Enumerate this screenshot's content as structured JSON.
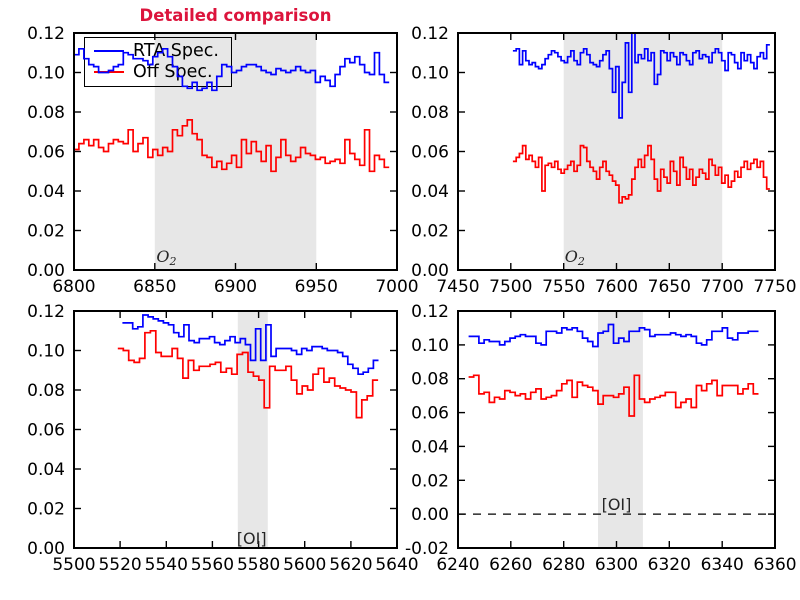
{
  "title": {
    "text": "Detailed comparison",
    "color": "#dc143c"
  },
  "colors": {
    "rta_spec": "#0000ff",
    "off_spec": "#ff0000",
    "band": "#e7e7e7",
    "axis": "#000000",
    "background": "#ffffff"
  },
  "legend": {
    "location": "upper-left-of-top-left-panel",
    "items": [
      {
        "label": "RTA Spec.",
        "color": "#0000ff"
      },
      {
        "label": "Off Spec.",
        "color": "#ff0000"
      }
    ]
  },
  "chart_data": [
    {
      "name": "top-left",
      "type": "line",
      "step": true,
      "grid": false,
      "xlabel": "",
      "ylabel": "",
      "xlim": [
        6800,
        7000
      ],
      "ylim": [
        0,
        0.12
      ],
      "xticks": [
        6800,
        6850,
        6900,
        6950,
        7000
      ],
      "yticks": [
        0.0,
        0.02,
        0.04,
        0.06,
        0.08,
        0.1,
        0.12
      ],
      "band": [
        6850,
        6950
      ],
      "zero_line": true,
      "annotation": {
        "label": "O",
        "sub": "2",
        "italic": true,
        "x": 6851,
        "y": 0.004,
        "anchor": "start"
      },
      "series": [
        {
          "name": "RTA Spec.",
          "color": "#0000ff",
          "x_start": 6800,
          "dx": 3.05,
          "values": [
            0.109,
            0.112,
            0.107,
            0.104,
            0.103,
            0.1,
            0.1,
            0.101,
            0.103,
            0.104,
            0.11,
            0.109,
            0.107,
            0.107,
            0.106,
            0.104,
            0.108,
            0.11,
            0.112,
            0.108,
            0.103,
            0.098,
            0.093,
            0.092,
            0.095,
            0.091,
            0.092,
            0.095,
            0.091,
            0.098,
            0.104,
            0.103,
            0.1,
            0.101,
            0.103,
            0.104,
            0.104,
            0.103,
            0.101,
            0.1,
            0.099,
            0.102,
            0.101,
            0.1,
            0.101,
            0.103,
            0.101,
            0.1,
            0.101,
            0.095,
            0.098,
            0.096,
            0.093,
            0.099,
            0.103,
            0.107,
            0.105,
            0.108,
            0.104,
            0.1,
            0.099,
            0.11,
            0.099,
            0.095
          ]
        },
        {
          "name": "Off Spec.",
          "color": "#ff0000",
          "x_start": 6800,
          "dx": 3.05,
          "values": [
            0.061,
            0.064,
            0.066,
            0.063,
            0.066,
            0.062,
            0.06,
            0.064,
            0.066,
            0.065,
            0.064,
            0.071,
            0.06,
            0.064,
            0.067,
            0.057,
            0.061,
            0.058,
            0.062,
            0.06,
            0.071,
            0.068,
            0.073,
            0.076,
            0.069,
            0.066,
            0.058,
            0.057,
            0.052,
            0.055,
            0.051,
            0.054,
            0.058,
            0.052,
            0.066,
            0.059,
            0.065,
            0.06,
            0.055,
            0.063,
            0.05,
            0.057,
            0.066,
            0.058,
            0.055,
            0.057,
            0.062,
            0.059,
            0.058,
            0.056,
            0.057,
            0.054,
            0.055,
            0.056,
            0.054,
            0.066,
            0.059,
            0.056,
            0.053,
            0.071,
            0.05,
            0.058,
            0.056,
            0.052
          ]
        }
      ]
    },
    {
      "name": "top-right",
      "type": "line",
      "step": true,
      "grid": false,
      "xlabel": "",
      "ylabel": "",
      "xlim": [
        7450,
        7750
      ],
      "ylim": [
        0,
        0.12
      ],
      "xticks": [
        7450,
        7500,
        7550,
        7600,
        7650,
        7700,
        7750
      ],
      "yticks": [
        0.0,
        0.02,
        0.04,
        0.06,
        0.08,
        0.1,
        0.12
      ],
      "band": [
        7550,
        7700
      ],
      "zero_line": true,
      "annotation": {
        "label": "O",
        "sub": "2",
        "italic": true,
        "x": 7551,
        "y": 0.004,
        "anchor": "start"
      },
      "series": [
        {
          "name": "RTA Spec.",
          "color": "#0000ff",
          "x_start": 7502,
          "dx": 3.04,
          "values": [
            0.111,
            0.112,
            0.104,
            0.111,
            0.106,
            0.104,
            0.105,
            0.103,
            0.102,
            0.104,
            0.107,
            0.109,
            0.111,
            0.11,
            0.108,
            0.106,
            0.105,
            0.108,
            0.111,
            0.106,
            0.104,
            0.11,
            0.112,
            0.109,
            0.105,
            0.104,
            0.103,
            0.106,
            0.109,
            0.111,
            0.102,
            0.09,
            0.103,
            0.077,
            0.095,
            0.115,
            0.09,
            0.121,
            0.105,
            0.109,
            0.107,
            0.112,
            0.106,
            0.11,
            0.094,
            0.099,
            0.111,
            0.11,
            0.106,
            0.11,
            0.108,
            0.104,
            0.11,
            0.109,
            0.106,
            0.104,
            0.11,
            0.111,
            0.107,
            0.109,
            0.108,
            0.105,
            0.11,
            0.112,
            0.11,
            0.106,
            0.101,
            0.11,
            0.109,
            0.105,
            0.102,
            0.11,
            0.106,
            0.109,
            0.105,
            0.102,
            0.108,
            0.11,
            0.107,
            0.114
          ]
        },
        {
          "name": "Off Spec.",
          "color": "#ff0000",
          "x_start": 7502,
          "dx": 3.04,
          "values": [
            0.055,
            0.057,
            0.059,
            0.063,
            0.056,
            0.058,
            0.055,
            0.052,
            0.057,
            0.04,
            0.053,
            0.054,
            0.052,
            0.055,
            0.051,
            0.049,
            0.051,
            0.053,
            0.055,
            0.05,
            0.053,
            0.063,
            0.062,
            0.055,
            0.052,
            0.05,
            0.046,
            0.052,
            0.055,
            0.05,
            0.048,
            0.045,
            0.043,
            0.034,
            0.037,
            0.036,
            0.038,
            0.046,
            0.052,
            0.056,
            0.052,
            0.058,
            0.063,
            0.056,
            0.046,
            0.04,
            0.051,
            0.047,
            0.044,
            0.055,
            0.05,
            0.043,
            0.057,
            0.052,
            0.046,
            0.051,
            0.043,
            0.047,
            0.051,
            0.049,
            0.046,
            0.056,
            0.053,
            0.048,
            0.052,
            0.044,
            0.048,
            0.042,
            0.045,
            0.05,
            0.047,
            0.052,
            0.055,
            0.051,
            0.054,
            0.056,
            0.052,
            0.055,
            0.047,
            0.041
          ]
        }
      ]
    },
    {
      "name": "bottom-left",
      "type": "line",
      "step": true,
      "grid": false,
      "xlabel": "",
      "ylabel": "",
      "xlim": [
        5500,
        5640
      ],
      "ylim": [
        0,
        0.12
      ],
      "xticks": [
        5500,
        5520,
        5540,
        5560,
        5580,
        5600,
        5620,
        5640
      ],
      "yticks": [
        0.0,
        0.02,
        0.04,
        0.06,
        0.08,
        0.1,
        0.12
      ],
      "band": [
        5571,
        5584
      ],
      "zero_line": true,
      "annotation": {
        "label": "[OI]",
        "sub": "",
        "italic": false,
        "x": 5577,
        "y": 0.002,
        "anchor": "middle"
      },
      "series": [
        {
          "name": "RTA Spec.",
          "color": "#0000ff",
          "x_start": 5521,
          "dx": 2.22,
          "values": [
            0.114,
            0.114,
            0.111,
            0.112,
            0.118,
            0.117,
            0.116,
            0.115,
            0.114,
            0.113,
            0.109,
            0.107,
            0.113,
            0.105,
            0.104,
            0.106,
            0.106,
            0.107,
            0.104,
            0.103,
            0.105,
            0.107,
            0.104,
            0.106,
            0.103,
            0.095,
            0.111,
            0.095,
            0.113,
            0.097,
            0.101,
            0.101,
            0.101,
            0.1,
            0.098,
            0.101,
            0.1,
            0.102,
            0.102,
            0.101,
            0.1,
            0.1,
            0.099,
            0.097,
            0.093,
            0.091,
            0.088,
            0.089,
            0.091,
            0.095
          ]
        },
        {
          "name": "Off Spec.",
          "color": "#ff0000",
          "x_start": 5519,
          "dx": 2.35,
          "values": [
            0.101,
            0.1,
            0.095,
            0.094,
            0.096,
            0.109,
            0.11,
            0.099,
            0.097,
            0.097,
            0.101,
            0.096,
            0.086,
            0.095,
            0.09,
            0.092,
            0.092,
            0.093,
            0.094,
            0.089,
            0.091,
            0.088,
            0.098,
            0.099,
            0.089,
            0.087,
            0.085,
            0.071,
            0.092,
            0.09,
            0.09,
            0.092,
            0.085,
            0.078,
            0.082,
            0.08,
            0.088,
            0.091,
            0.084,
            0.086,
            0.082,
            0.081,
            0.08,
            0.079,
            0.066,
            0.075,
            0.077,
            0.085
          ]
        }
      ]
    },
    {
      "name": "bottom-right",
      "type": "line",
      "step": true,
      "grid": false,
      "xlabel": "",
      "ylabel": "",
      "xlim": [
        6240,
        6360
      ],
      "ylim": [
        -0.02,
        0.12
      ],
      "xticks": [
        6240,
        6260,
        6280,
        6300,
        6320,
        6340,
        6360
      ],
      "yticks": [
        -0.02,
        0.0,
        0.02,
        0.04,
        0.06,
        0.08,
        0.1,
        0.12
      ],
      "band": [
        6293,
        6310
      ],
      "zero_line": true,
      "annotation": {
        "label": "[OI]",
        "sub": "",
        "italic": false,
        "x": 6300,
        "y": 0.0025,
        "anchor": "middle"
      },
      "series": [
        {
          "name": "RTA Spec.",
          "color": "#0000ff",
          "x_start": 6244,
          "dx": 1.96,
          "values": [
            0.105,
            0.105,
            0.101,
            0.103,
            0.102,
            0.102,
            0.1,
            0.102,
            0.104,
            0.105,
            0.106,
            0.105,
            0.105,
            0.101,
            0.1,
            0.108,
            0.108,
            0.107,
            0.11,
            0.109,
            0.11,
            0.108,
            0.104,
            0.102,
            0.099,
            0.107,
            0.108,
            0.112,
            0.101,
            0.104,
            0.102,
            0.108,
            0.108,
            0.11,
            0.109,
            0.105,
            0.106,
            0.106,
            0.106,
            0.107,
            0.106,
            0.105,
            0.106,
            0.105,
            0.101,
            0.1,
            0.103,
            0.108,
            0.108,
            0.11,
            0.104,
            0.103,
            0.107,
            0.107,
            0.108,
            0.108
          ]
        },
        {
          "name": "Off Spec.",
          "color": "#ff0000",
          "x_start": 6244,
          "dx": 1.96,
          "values": [
            0.081,
            0.082,
            0.071,
            0.072,
            0.066,
            0.069,
            0.068,
            0.073,
            0.072,
            0.07,
            0.071,
            0.068,
            0.072,
            0.074,
            0.068,
            0.069,
            0.07,
            0.073,
            0.077,
            0.079,
            0.069,
            0.078,
            0.076,
            0.075,
            0.073,
            0.065,
            0.07,
            0.07,
            0.069,
            0.071,
            0.075,
            0.058,
            0.082,
            0.068,
            0.066,
            0.068,
            0.069,
            0.07,
            0.072,
            0.072,
            0.063,
            0.066,
            0.068,
            0.063,
            0.076,
            0.073,
            0.077,
            0.079,
            0.07,
            0.076,
            0.076,
            0.076,
            0.071,
            0.074,
            0.077,
            0.071
          ]
        }
      ]
    }
  ]
}
